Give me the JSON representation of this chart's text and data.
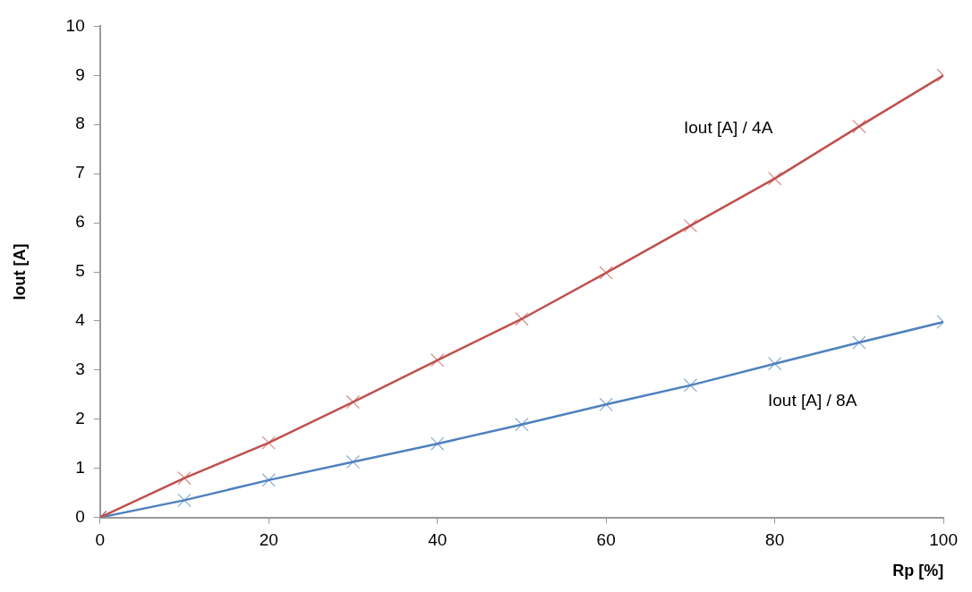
{
  "chart_data": {
    "type": "line",
    "xlabel": "Rp [%]",
    "ylabel": "Iout [A]",
    "x": [
      0,
      10,
      20,
      30,
      40,
      50,
      60,
      70,
      80,
      90,
      100
    ],
    "series": [
      {
        "name": "Iout [A] / 4A",
        "color": "#c0504d",
        "values": [
          0,
          0.8,
          1.52,
          2.35,
          3.2,
          4.04,
          4.98,
          5.94,
          6.9,
          7.96,
          9.0
        ]
      },
      {
        "name": "Iout [A] / 8A",
        "color": "#4f81bd",
        "values": [
          0,
          0.35,
          0.76,
          1.13,
          1.5,
          1.89,
          2.3,
          2.69,
          3.13,
          3.56,
          3.98
        ]
      }
    ],
    "xlim": [
      0,
      100
    ],
    "xticks": [
      0,
      20,
      40,
      60,
      80,
      100
    ],
    "ylim": [
      0,
      10
    ],
    "yticks": [
      0,
      1,
      2,
      3,
      4,
      5,
      6,
      7,
      8,
      9,
      10
    ],
    "grid": false,
    "legend": false,
    "marker": "cross",
    "line_style": "solid"
  }
}
